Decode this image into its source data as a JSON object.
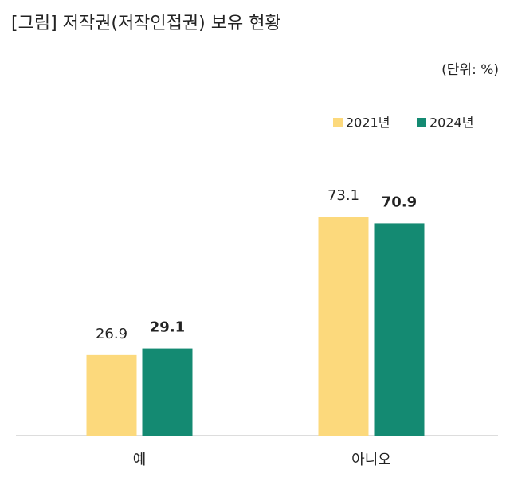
{
  "chart_data": {
    "type": "bar",
    "title": "[그림] 저작권(저작인접권) 보유 현황",
    "unit": "(단위: %)",
    "categories": [
      "예",
      "아니오"
    ],
    "series": [
      {
        "name": "2021년",
        "color": "#fcd97c",
        "values": [
          26.9,
          73.1
        ]
      },
      {
        "name": "2024년",
        "color": "#148a72",
        "values": [
          29.1,
          70.9
        ]
      }
    ]
  }
}
